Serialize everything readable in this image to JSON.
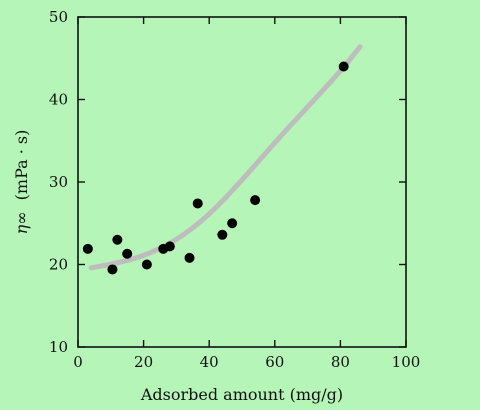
{
  "colors": {
    "background": "#B5F5B8",
    "axis": "#111111",
    "points": "#000000",
    "fit_curve": "#BDBDBD"
  },
  "chart_data": {
    "type": "scatter",
    "title": "",
    "xlabel": "Adsorbed amount (mg/g)",
    "ylabel_symbol": "η∞",
    "ylabel_unit": "(mPa · s)",
    "xlim": [
      0,
      100
    ],
    "ylim": [
      10,
      50
    ],
    "x_ticks": [
      0,
      20,
      40,
      60,
      80,
      100
    ],
    "y_ticks": [
      10,
      20,
      30,
      40,
      50
    ],
    "grid": false,
    "series": [
      {
        "kind": "points",
        "x": [
          3,
          10.5,
          12,
          15,
          21,
          26,
          28,
          34,
          36.5,
          44,
          47,
          54,
          81
        ],
        "y": [
          21.9,
          19.4,
          23.0,
          21.3,
          20.0,
          21.9,
          22.2,
          20.8,
          27.4,
          23.6,
          25.0,
          27.8,
          44.0
        ]
      },
      {
        "kind": "fit-line",
        "x": [
          4,
          10,
          20,
          30,
          40,
          50,
          60,
          70,
          80,
          86
        ],
        "y": [
          19.6,
          20.0,
          21.0,
          22.9,
          26.0,
          30.2,
          34.8,
          39.1,
          43.4,
          46.4
        ]
      }
    ]
  }
}
